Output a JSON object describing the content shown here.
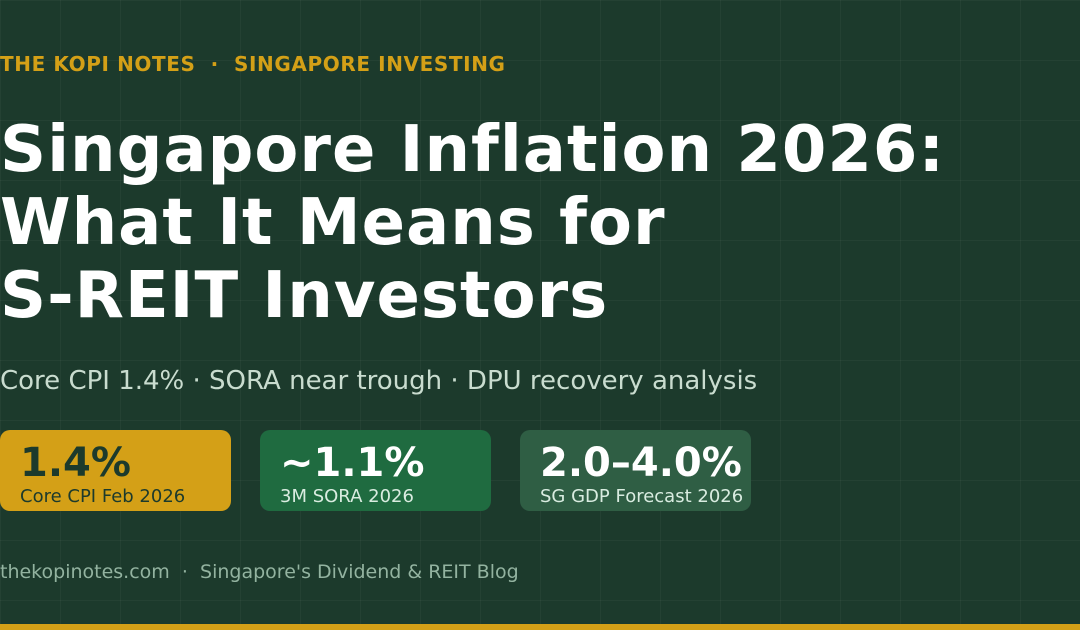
{
  "kicker": {
    "brand": "THE KOPI NOTES",
    "separator": "·",
    "section": "SINGAPORE INVESTING"
  },
  "title": {
    "line1": "Singapore Inflation 2026:",
    "line2": "What It Means for",
    "line3": "S-REIT Investors"
  },
  "subtitle": "Core CPI 1.4% · SORA near trough · DPU recovery analysis",
  "stats": [
    {
      "value": "1.4%",
      "label": "Core CPI Feb 2026"
    },
    {
      "value": "~1.1%",
      "label": "3M SORA 2026"
    },
    {
      "value": "2.0–4.0%",
      "label": "SG GDP Forecast 2026"
    }
  ],
  "footer": {
    "site": "thekopinotes.com",
    "separator": "·",
    "tagline": "Singapore's Dividend & REIT Blog"
  },
  "colors": {
    "background": "#1c3a2c",
    "accent_gold": "#d4a017",
    "card_green": "#1f6b40",
    "card_muted_green": "#2f5e44",
    "text_white": "#ffffff"
  }
}
